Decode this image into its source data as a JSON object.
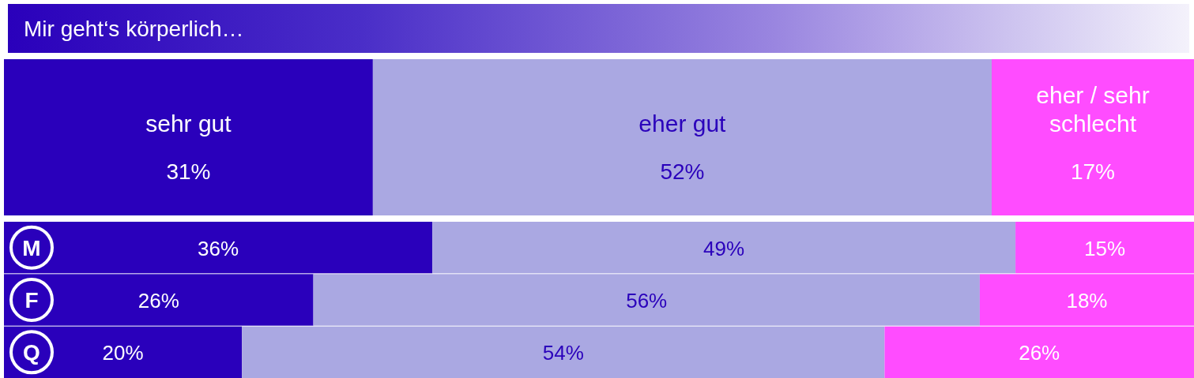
{
  "chart_data": [
    {
      "type": "bar",
      "orientation": "horizontal",
      "stacked": true,
      "title": "Mir geht‘s körperlich…",
      "categories": [
        null
      ],
      "series": [
        {
          "name": "sehr gut",
          "color": "#2a00bb",
          "values": [
            31
          ],
          "value_labels": [
            "31%"
          ]
        },
        {
          "name": "eher gut",
          "color": "#aaa8e2",
          "values": [
            52
          ],
          "value_labels": [
            "52%"
          ]
        },
        {
          "name": "eher / sehr schlecht",
          "color": "#ff4cff",
          "values": [
            17
          ],
          "value_labels": [
            "17%"
          ]
        }
      ],
      "tick_labels": false
    },
    {
      "type": "bar",
      "orientation": "horizontal",
      "stacked": true,
      "categories": [
        "M",
        "F",
        "Q"
      ],
      "series": [
        {
          "color": "#2a00bb",
          "values": [
            36,
            26,
            20
          ],
          "value_labels": [
            "36%",
            "26%",
            "20%"
          ]
        },
        {
          "color": "#aaa8e2",
          "values": [
            49,
            56,
            54
          ],
          "value_labels": [
            "49%",
            "56%",
            "54%"
          ]
        },
        {
          "color": "#ff4cff",
          "values": [
            15,
            18,
            26
          ],
          "value_labels": [
            "15%",
            "18%",
            "26%"
          ]
        }
      ],
      "tick_labels": "y"
    }
  ]
}
